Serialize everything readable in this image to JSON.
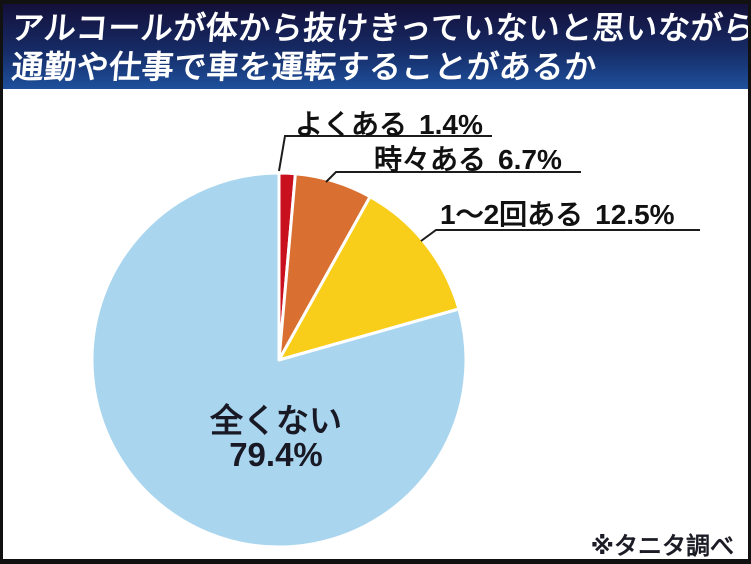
{
  "header": {
    "line1": "アルコールが体から抜けきっていないと思いながら",
    "line2": "通勤や仕事で車を運転することがあるか"
  },
  "footer": {
    "source": "※タニタ調べ"
  },
  "chart_data": {
    "type": "pie",
    "title": "アルコールが体から抜けきっていないと思いながら通勤や仕事で車を運転することがあるか",
    "categories": [
      "よくある",
      "時々ある",
      "1～2回ある",
      "全くない"
    ],
    "values": [
      1.4,
      6.7,
      12.5,
      79.4
    ],
    "slices": [
      {
        "label": "よくある",
        "pct": "1.4%",
        "value": 1.4,
        "color": "#c9101e"
      },
      {
        "label": "時々ある",
        "pct": "6.7%",
        "value": 6.7,
        "color": "#d96f31"
      },
      {
        "label": "1～2回ある",
        "pct": "12.5%",
        "value": 12.5,
        "color": "#f8ce1b"
      },
      {
        "label": "全くない",
        "pct": "79.4%",
        "value": 79.4,
        "color": "#a9d5ee"
      }
    ],
    "start_angle_deg": 0,
    "direction": "clockwise",
    "slice_gap_color": "#ffffff",
    "legend": "none",
    "banner_colors": {
      "top": "#14103a",
      "bottom": "#1e509c"
    },
    "label_text_color": "#111111"
  }
}
